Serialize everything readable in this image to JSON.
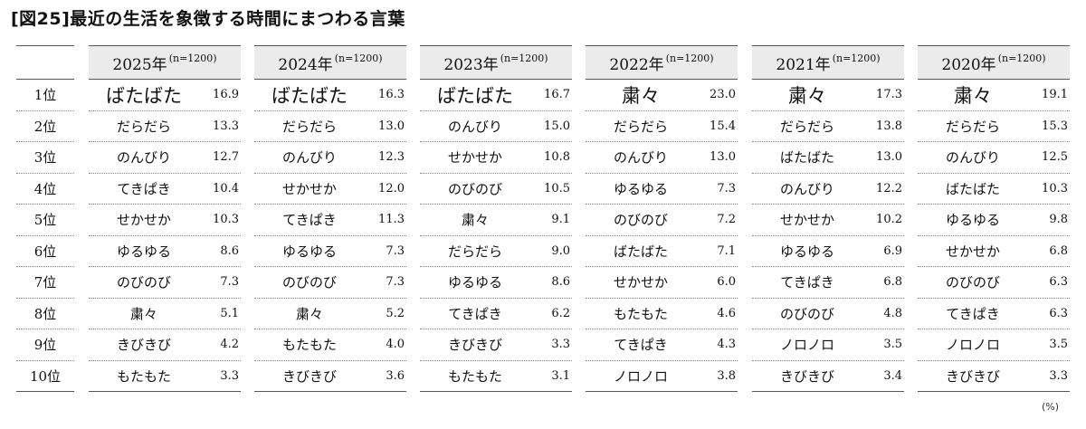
{
  "title": "[図25]最近の生活を象徴する時間にまつわる言葉",
  "unit": "(%)",
  "ranks": [
    "1位",
    "2位",
    "3位",
    "4位",
    "5位",
    "6位",
    "7位",
    "8位",
    "9位",
    "10位"
  ],
  "years": [
    {
      "year": "2025年",
      "n": "(n=1200)",
      "rows": [
        {
          "word": "ばたばた",
          "value": "16.9"
        },
        {
          "word": "だらだら",
          "value": "13.3"
        },
        {
          "word": "のんびり",
          "value": "12.7"
        },
        {
          "word": "てきぱき",
          "value": "10.4"
        },
        {
          "word": "せかせか",
          "value": "10.3"
        },
        {
          "word": "ゆるゆる",
          "value": "8.6"
        },
        {
          "word": "のびのび",
          "value": "7.3"
        },
        {
          "word": "粛々",
          "value": "5.1"
        },
        {
          "word": "きびきび",
          "value": "4.2"
        },
        {
          "word": "もたもた",
          "value": "3.3"
        }
      ]
    },
    {
      "year": "2024年",
      "n": "(n=1200)",
      "rows": [
        {
          "word": "ばたばた",
          "value": "16.3"
        },
        {
          "word": "だらだら",
          "value": "13.0"
        },
        {
          "word": "のんびり",
          "value": "12.3"
        },
        {
          "word": "せかせか",
          "value": "12.0"
        },
        {
          "word": "てきぱき",
          "value": "11.3"
        },
        {
          "word": "ゆるゆる",
          "value": "7.3"
        },
        {
          "word": "のびのび",
          "value": "7.3"
        },
        {
          "word": "粛々",
          "value": "5.2"
        },
        {
          "word": "もたもた",
          "value": "4.0"
        },
        {
          "word": "きびきび",
          "value": "3.6"
        }
      ]
    },
    {
      "year": "2023年",
      "n": "(n=1200)",
      "rows": [
        {
          "word": "ばたばた",
          "value": "16.7"
        },
        {
          "word": "のんびり",
          "value": "15.0"
        },
        {
          "word": "せかせか",
          "value": "10.8"
        },
        {
          "word": "のびのび",
          "value": "10.5"
        },
        {
          "word": "粛々",
          "value": "9.1"
        },
        {
          "word": "だらだら",
          "value": "9.0"
        },
        {
          "word": "ゆるゆる",
          "value": "8.6"
        },
        {
          "word": "てきぱき",
          "value": "6.2"
        },
        {
          "word": "きびきび",
          "value": "3.3"
        },
        {
          "word": "もたもた",
          "value": "3.1"
        }
      ]
    },
    {
      "year": "2022年",
      "n": "(n=1200)",
      "rows": [
        {
          "word": "粛々",
          "value": "23.0"
        },
        {
          "word": "だらだら",
          "value": "15.4"
        },
        {
          "word": "のんびり",
          "value": "13.0"
        },
        {
          "word": "ゆるゆる",
          "value": "7.3"
        },
        {
          "word": "のびのび",
          "value": "7.2"
        },
        {
          "word": "ばたばた",
          "value": "7.1"
        },
        {
          "word": "せかせか",
          "value": "6.0"
        },
        {
          "word": "もたもた",
          "value": "4.6"
        },
        {
          "word": "てきぱき",
          "value": "4.3"
        },
        {
          "word": "ノロノロ",
          "value": "3.8"
        }
      ]
    },
    {
      "year": "2021年",
      "n": "(n=1200)",
      "rows": [
        {
          "word": "粛々",
          "value": "17.3"
        },
        {
          "word": "だらだら",
          "value": "13.8"
        },
        {
          "word": "ばたばた",
          "value": "13.0"
        },
        {
          "word": "のんびり",
          "value": "12.2"
        },
        {
          "word": "せかせか",
          "value": "10.2"
        },
        {
          "word": "ゆるゆる",
          "value": "6.9"
        },
        {
          "word": "てきぱき",
          "value": "6.8"
        },
        {
          "word": "のびのび",
          "value": "4.8"
        },
        {
          "word": "ノロノロ",
          "value": "3.5"
        },
        {
          "word": "きびきび",
          "value": "3.4"
        }
      ]
    },
    {
      "year": "2020年",
      "n": "(n=1200)",
      "rows": [
        {
          "word": "粛々",
          "value": "19.1"
        },
        {
          "word": "だらだら",
          "value": "15.3"
        },
        {
          "word": "のんびり",
          "value": "12.5"
        },
        {
          "word": "ばたばた",
          "value": "10.3"
        },
        {
          "word": "ゆるゆる",
          "value": "9.8"
        },
        {
          "word": "せかせか",
          "value": "6.8"
        },
        {
          "word": "のびのび",
          "value": "6.3"
        },
        {
          "word": "てきぱき",
          "value": "6.3"
        },
        {
          "word": "ノロノロ",
          "value": "3.5"
        },
        {
          "word": "きびきび",
          "value": "3.3"
        }
      ]
    }
  ]
}
